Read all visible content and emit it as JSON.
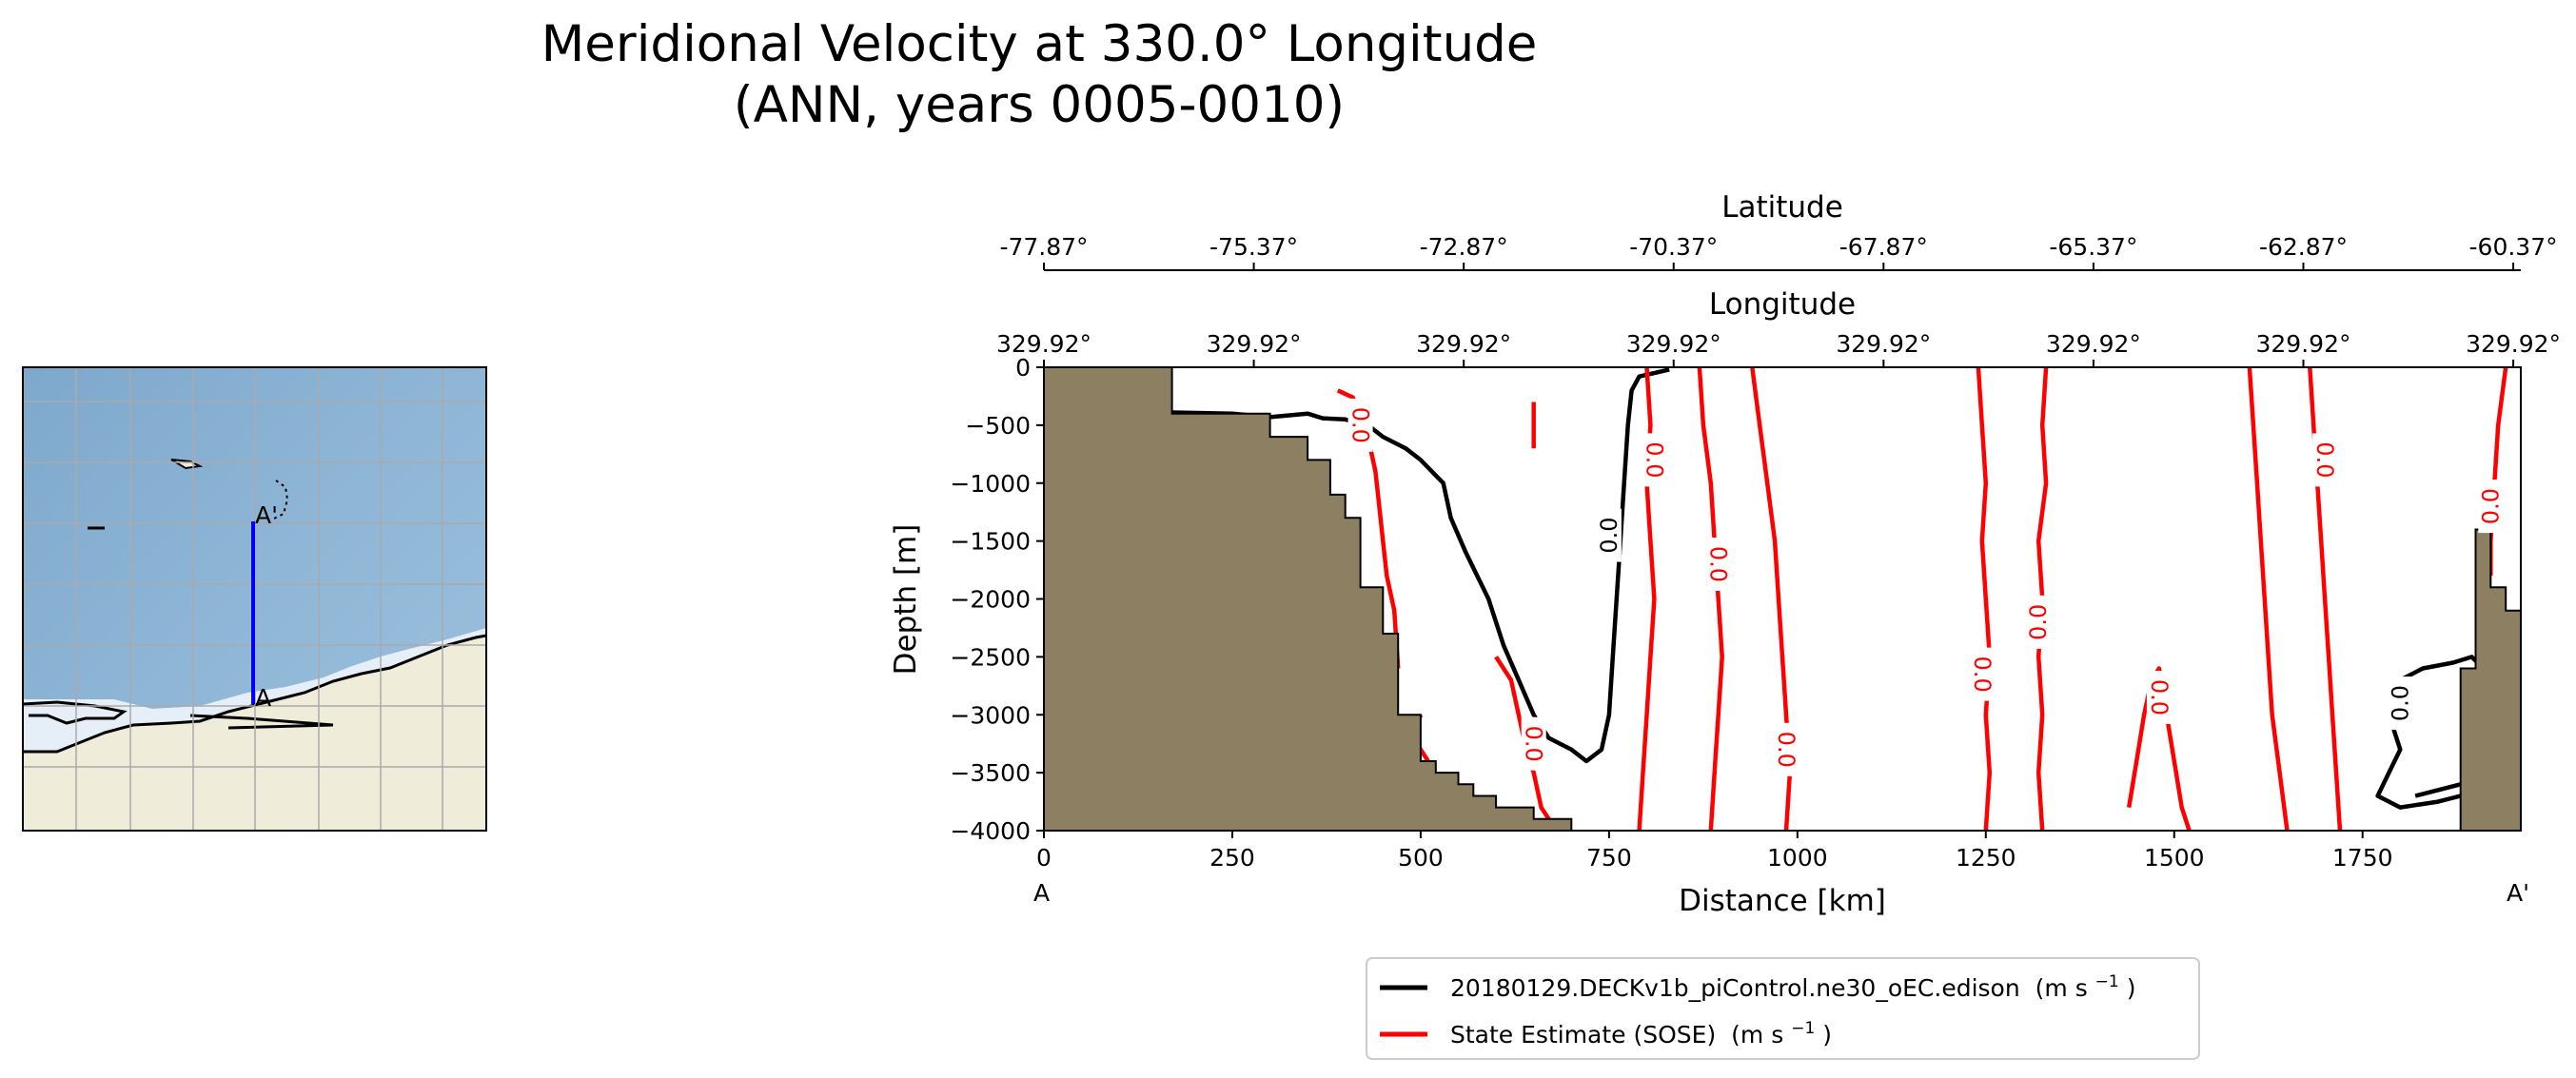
{
  "chart_data": {
    "type": "line",
    "title_line1": "Meridional Velocity at 330.0° Longitude",
    "title_line2": "(ANN, years 0005-0010)",
    "xlabel": "Distance [km]",
    "ylabel": "Depth [m]",
    "xlim": [
      0,
      1960
    ],
    "ylim": [
      -4000,
      0
    ],
    "xticks": [
      0,
      250,
      500,
      750,
      1000,
      1250,
      1500,
      1750
    ],
    "yticks": [
      0,
      -500,
      -1000,
      -1500,
      -2000,
      -2500,
      -3000,
      -3500,
      -4000
    ],
    "xtick_labels": [
      "0",
      "250",
      "500",
      "750",
      "1000",
      "1250",
      "1500",
      "1750"
    ],
    "ytick_labels": [
      "0",
      "−500",
      "−1000",
      "−1500",
      "−2000",
      "−2500",
      "−3000",
      "−3500",
      "−4000"
    ],
    "start_label": "A",
    "end_label": "A'",
    "top_axes": [
      {
        "label": "Latitude",
        "tick_positions": [
          0,
          278.57,
          557.14,
          835.71,
          1114.29,
          1392.86,
          1671.43,
          1950
        ],
        "tick_labels": [
          "-77.87°",
          "-75.37°",
          "-72.87°",
          "-70.37°",
          "-67.87°",
          "-65.37°",
          "-62.87°",
          "-60.37°"
        ]
      },
      {
        "label": "Longitude",
        "tick_positions": [
          0,
          278.57,
          557.14,
          835.71,
          1114.29,
          1392.86,
          1671.43,
          1950
        ],
        "tick_labels": [
          "329.92°",
          "329.92°",
          "329.92°",
          "329.92°",
          "329.92°",
          "329.92°",
          "329.92°",
          "329.92°"
        ]
      }
    ],
    "contour_level_label": "0.0",
    "series": [
      {
        "name": "20180129.DECKv1b_piControl.ne30_oEC.edison",
        "units": "(m s",
        "units_exp": "−1",
        "units_close": ")",
        "color": "#000000",
        "contours": [
          [
            [
              170,
              -390
            ],
            [
              250,
              -400
            ],
            [
              300,
              -430
            ],
            [
              350,
              -400
            ],
            [
              370,
              -440
            ],
            [
              400,
              -450
            ],
            [
              430,
              -500
            ],
            [
              450,
              -600
            ],
            [
              480,
              -700
            ],
            [
              500,
              -800
            ],
            [
              530,
              -1000
            ],
            [
              540,
              -1300
            ],
            [
              560,
              -1600
            ],
            [
              590,
              -2000
            ],
            [
              610,
              -2400
            ],
            [
              630,
              -2700
            ],
            [
              650,
              -3000
            ],
            [
              670,
              -3200
            ],
            [
              700,
              -3300
            ],
            [
              720,
              -3400
            ],
            [
              740,
              -3300
            ],
            [
              750,
              -3000
            ],
            [
              755,
              -2500
            ],
            [
              760,
              -2000
            ],
            [
              765,
              -1500
            ],
            [
              770,
              -1000
            ],
            [
              775,
              -500
            ],
            [
              780,
              -200
            ],
            [
              790,
              -80
            ],
            [
              830,
              -20
            ]
          ],
          [
            [
              1800,
              -2700
            ],
            [
              1830,
              -2600
            ],
            [
              1870,
              -2550
            ],
            [
              1895,
              -2500
            ],
            [
              1910,
              -2600
            ]
          ],
          [
            [
              1790,
              -3100
            ],
            [
              1800,
              -3300
            ],
            [
              1785,
              -3500
            ],
            [
              1770,
              -3700
            ],
            [
              1800,
              -3800
            ],
            [
              1850,
              -3750
            ],
            [
              1880,
              -3700
            ]
          ],
          [
            [
              1820,
              -3700
            ],
            [
              1850,
              -3650
            ],
            [
              1880,
              -3600
            ]
          ]
        ]
      },
      {
        "name": "State Estimate (SOSE)",
        "units": "(m s",
        "units_exp": "−1",
        "units_close": ")",
        "color": "#ff0000",
        "contours": [
          [
            [
              390,
              -200
            ],
            [
              410,
              -260
            ],
            [
              420,
              -400
            ],
            [
              430,
              -600
            ],
            [
              440,
              -900
            ],
            [
              445,
              -1200
            ],
            [
              450,
              -1500
            ],
            [
              455,
              -1800
            ],
            [
              465,
              -2100
            ],
            [
              470,
              -2600
            ]
          ],
          [
            [
              500,
              -3000
            ],
            [
              490,
              -3200
            ],
            [
              510,
              -3400
            ]
          ],
          [
            [
              600,
              -2500
            ],
            [
              620,
              -2700
            ],
            [
              630,
              -3000
            ],
            [
              640,
              -3300
            ],
            [
              650,
              -3500
            ],
            [
              660,
              -3800
            ],
            [
              680,
              -4000
            ]
          ],
          [
            [
              650,
              -300
            ],
            [
              650,
              -700
            ]
          ],
          [
            [
              800,
              0
            ],
            [
              805,
              -500
            ],
            [
              800,
              -1000
            ],
            [
              805,
              -1500
            ],
            [
              810,
              -2000
            ],
            [
              805,
              -2500
            ],
            [
              800,
              -3000
            ],
            [
              795,
              -3500
            ],
            [
              790,
              -4000
            ]
          ],
          [
            [
              870,
              0
            ],
            [
              875,
              -500
            ],
            [
              885,
              -1000
            ],
            [
              890,
              -1500
            ],
            [
              895,
              -2000
            ],
            [
              900,
              -2500
            ],
            [
              895,
              -3000
            ],
            [
              890,
              -3500
            ],
            [
              885,
              -4000
            ]
          ],
          [
            [
              940,
              0
            ],
            [
              950,
              -500
            ],
            [
              960,
              -1000
            ],
            [
              970,
              -1500
            ],
            [
              975,
              -2000
            ],
            [
              980,
              -2500
            ],
            [
              985,
              -3000
            ],
            [
              990,
              -3500
            ],
            [
              985,
              -4000
            ]
          ],
          [
            [
              1240,
              0
            ],
            [
              1245,
              -500
            ],
            [
              1250,
              -1000
            ],
            [
              1245,
              -1500
            ],
            [
              1250,
              -2000
            ],
            [
              1255,
              -2500
            ],
            [
              1250,
              -3000
            ],
            [
              1255,
              -3500
            ],
            [
              1250,
              -4000
            ]
          ],
          [
            [
              1330,
              0
            ],
            [
              1325,
              -500
            ],
            [
              1330,
              -1000
            ],
            [
              1320,
              -1500
            ],
            [
              1325,
              -2000
            ],
            [
              1320,
              -2500
            ],
            [
              1325,
              -3000
            ],
            [
              1320,
              -3500
            ],
            [
              1325,
              -4000
            ]
          ],
          [
            [
              1440,
              -3800
            ],
            [
              1450,
              -3400
            ],
            [
              1460,
              -3000
            ],
            [
              1470,
              -2700
            ],
            [
              1480,
              -2600
            ],
            [
              1490,
              -3000
            ],
            [
              1500,
              -3400
            ],
            [
              1510,
              -3800
            ],
            [
              1520,
              -4000
            ]
          ],
          [
            [
              1600,
              0
            ],
            [
              1605,
              -500
            ],
            [
              1610,
              -1000
            ],
            [
              1615,
              -1500
            ],
            [
              1620,
              -2000
            ],
            [
              1625,
              -2500
            ],
            [
              1630,
              -3000
            ],
            [
              1640,
              -3500
            ],
            [
              1650,
              -4000
            ]
          ],
          [
            [
              1680,
              0
            ],
            [
              1685,
              -500
            ],
            [
              1690,
              -1000
            ],
            [
              1695,
              -1500
            ],
            [
              1700,
              -2000
            ],
            [
              1705,
              -2500
            ],
            [
              1710,
              -3000
            ],
            [
              1715,
              -3500
            ],
            [
              1720,
              -4000
            ]
          ],
          [
            [
              1940,
              0
            ],
            [
              1930,
              -500
            ],
            [
              1925,
              -1000
            ],
            [
              1920,
              -1500
            ],
            [
              1920,
              -1800
            ]
          ]
        ]
      }
    ],
    "contour_labels": [
      {
        "x": 750,
        "y": -1450,
        "series": 0,
        "rotation": -90
      },
      {
        "x": 1800,
        "y": -2900,
        "series": 0,
        "rotation": -90
      },
      {
        "x": 420,
        "y": -500,
        "series": 1,
        "rotation": 90
      },
      {
        "x": 650,
        "y": -3250,
        "series": 1,
        "rotation": 90
      },
      {
        "x": 810,
        "y": -800,
        "series": 1,
        "rotation": 90
      },
      {
        "x": 895,
        "y": -1700,
        "series": 1,
        "rotation": 90
      },
      {
        "x": 985,
        "y": -3300,
        "series": 1,
        "rotation": 90
      },
      {
        "x": 1245,
        "y": -2650,
        "series": 1,
        "rotation": 90
      },
      {
        "x": 1320,
        "y": -2200,
        "series": 1,
        "rotation": -90
      },
      {
        "x": 1480,
        "y": -2850,
        "series": 1,
        "rotation": 90
      },
      {
        "x": 1700,
        "y": -800,
        "series": 1,
        "rotation": 90
      },
      {
        "x": 1920,
        "y": -1200,
        "series": 1,
        "rotation": -90
      }
    ],
    "bathymetry": [
      [
        0,
        0
      ],
      [
        170,
        0
      ],
      [
        170,
        -400
      ],
      [
        300,
        -400
      ],
      [
        300,
        -600
      ],
      [
        350,
        -600
      ],
      [
        350,
        -800
      ],
      [
        380,
        -800
      ],
      [
        380,
        -1100
      ],
      [
        400,
        -1100
      ],
      [
        400,
        -1300
      ],
      [
        420,
        -1300
      ],
      [
        420,
        -1900
      ],
      [
        450,
        -1900
      ],
      [
        450,
        -2300
      ],
      [
        470,
        -2300
      ],
      [
        470,
        -2600
      ],
      [
        470,
        -3000
      ],
      [
        500,
        -3000
      ],
      [
        500,
        -3400
      ],
      [
        520,
        -3400
      ],
      [
        520,
        -3500
      ],
      [
        550,
        -3500
      ],
      [
        550,
        -3600
      ],
      [
        570,
        -3600
      ],
      [
        570,
        -3700
      ],
      [
        600,
        -3700
      ],
      [
        600,
        -3800
      ],
      [
        650,
        -3800
      ],
      [
        650,
        -3900
      ],
      [
        700,
        -3900
      ],
      [
        700,
        -4000
      ],
      [
        0,
        -4000
      ]
    ],
    "bathymetry_right": [
      [
        1880,
        -4000
      ],
      [
        1880,
        -2600
      ],
      [
        1900,
        -2600
      ],
      [
        1900,
        -1400
      ],
      [
        1920,
        -1400
      ],
      [
        1920,
        -1900
      ],
      [
        1940,
        -1900
      ],
      [
        1940,
        -2100
      ],
      [
        1960,
        -2100
      ],
      [
        1960,
        -4000
      ]
    ],
    "land_color": "#8c7f62",
    "map": {
      "transect_start_label": "A",
      "transect_end_label": "A'"
    }
  }
}
